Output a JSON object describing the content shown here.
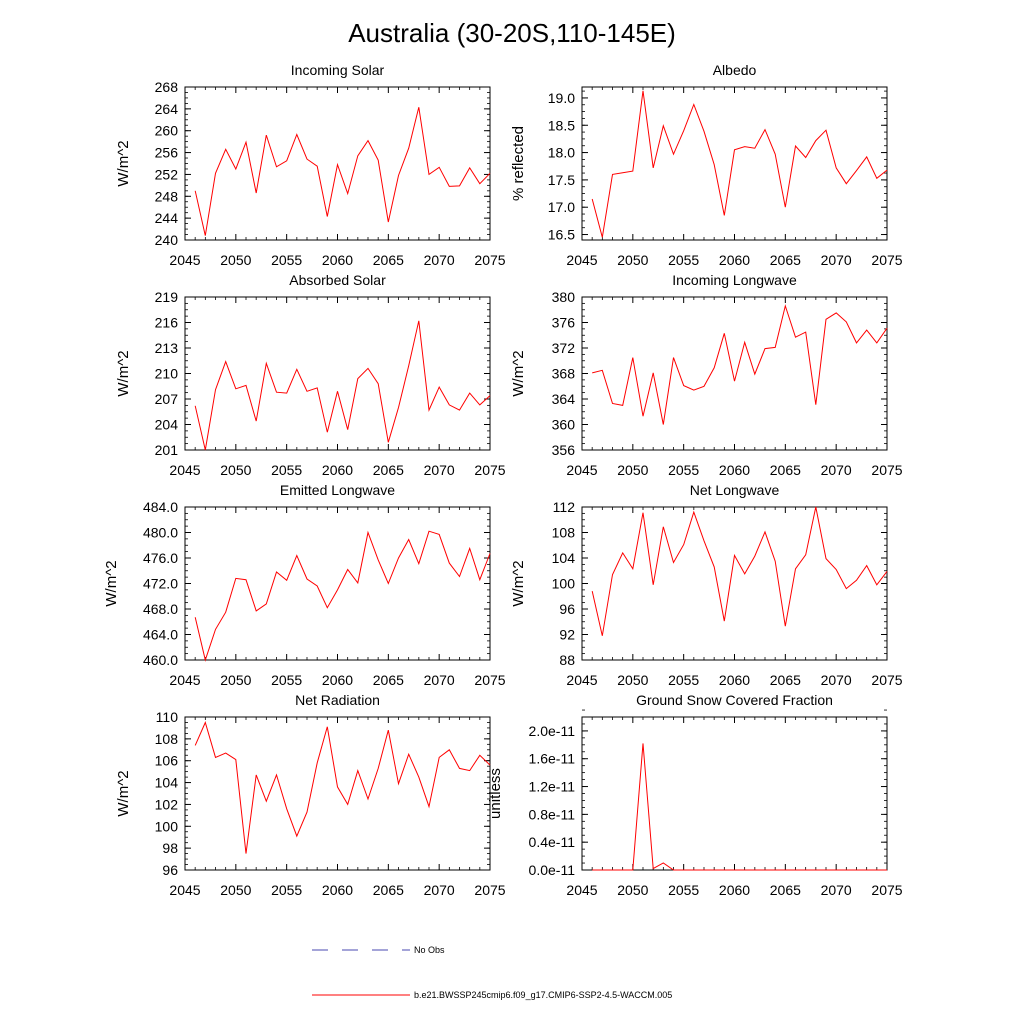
{
  "figure": {
    "title": "Australia (30-20S,110-145E)",
    "legend": [
      {
        "label": "No Obs",
        "color": "#4a4ab0",
        "style": "dashed"
      },
      {
        "label": "b.e21.BWSSP245cmip6.f09_g17.CMIP6-SSP2-4.5-WACCM.005",
        "color": "#ff0000",
        "style": "solid"
      }
    ]
  },
  "chart_data": [
    {
      "type": "line",
      "title": "Incoming Solar",
      "ylabel": "W/m^2",
      "xlim": [
        2045,
        2075
      ],
      "ylim": [
        240,
        268
      ],
      "xticks": [
        "2045",
        "2050",
        "2055",
        "2060",
        "2065",
        "2070",
        "2075"
      ],
      "yticks": [
        "240",
        "244",
        "248",
        "252",
        "256",
        "260",
        "264",
        "268"
      ],
      "x": [
        2046,
        2047,
        2048,
        2049,
        2050,
        2051,
        2052,
        2053,
        2054,
        2055,
        2056,
        2057,
        2058,
        2059,
        2060,
        2061,
        2062,
        2063,
        2064,
        2065,
        2066,
        2067,
        2068,
        2069,
        2070,
        2071,
        2072,
        2073,
        2074,
        2075
      ],
      "series": [
        {
          "color": "#ff0000",
          "values": [
            249.0,
            240.8,
            252.2,
            256.6,
            253.0,
            257.9,
            248.6,
            259.2,
            253.4,
            254.5,
            259.3,
            254.8,
            253.5,
            244.3,
            253.8,
            248.5,
            255.4,
            258.2,
            254.6,
            243.3,
            251.8,
            256.8,
            264.3,
            252.0,
            253.3,
            249.8,
            249.9,
            253.2,
            250.3,
            252.2
          ]
        }
      ]
    },
    {
      "type": "line",
      "title": "Albedo",
      "ylabel": "% reflected",
      "xlim": [
        2045,
        2075
      ],
      "ylim": [
        16.4,
        19.2
      ],
      "xticks": [
        "2045",
        "2050",
        "2055",
        "2060",
        "2065",
        "2070",
        "2075"
      ],
      "yticks": [
        "16.5",
        "17.0",
        "17.5",
        "18.0",
        "18.5",
        "19.0"
      ],
      "x": [
        2046,
        2047,
        2048,
        2049,
        2050,
        2051,
        2052,
        2053,
        2054,
        2055,
        2056,
        2057,
        2058,
        2059,
        2060,
        2061,
        2062,
        2063,
        2064,
        2065,
        2066,
        2067,
        2068,
        2069,
        2070,
        2071,
        2072,
        2073,
        2074,
        2075
      ],
      "series": [
        {
          "color": "#ff0000",
          "values": [
            17.15,
            16.45,
            17.6,
            17.63,
            17.66,
            19.13,
            17.72,
            18.49,
            17.97,
            18.4,
            18.88,
            18.39,
            17.78,
            16.85,
            18.05,
            18.11,
            18.08,
            18.42,
            17.97,
            17.0,
            18.12,
            17.91,
            18.22,
            18.41,
            17.72,
            17.43,
            17.67,
            17.92,
            17.53,
            17.68
          ]
        }
      ]
    },
    {
      "type": "line",
      "title": "Absorbed Solar",
      "ylabel": "W/m^2",
      "xlim": [
        2045,
        2075
      ],
      "ylim": [
        201,
        219
      ],
      "xticks": [
        "2045",
        "2050",
        "2055",
        "2060",
        "2065",
        "2070",
        "2075"
      ],
      "yticks": [
        "201",
        "204",
        "207",
        "210",
        "213",
        "216",
        "219"
      ],
      "x": [
        2046,
        2047,
        2048,
        2049,
        2050,
        2051,
        2052,
        2053,
        2054,
        2055,
        2056,
        2057,
        2058,
        2059,
        2060,
        2061,
        2062,
        2063,
        2064,
        2065,
        2066,
        2067,
        2068,
        2069,
        2070,
        2071,
        2072,
        2073,
        2074,
        2075
      ],
      "series": [
        {
          "color": "#ff0000",
          "values": [
            206.2,
            201.0,
            208.1,
            211.4,
            208.2,
            208.6,
            204.4,
            211.2,
            207.8,
            207.7,
            210.5,
            207.9,
            208.3,
            203.1,
            207.9,
            203.4,
            209.4,
            210.6,
            208.8,
            201.9,
            206.0,
            210.9,
            216.2,
            205.7,
            208.4,
            206.3,
            205.7,
            207.7,
            206.3,
            207.4
          ]
        }
      ]
    },
    {
      "type": "line",
      "title": "Incoming Longwave",
      "ylabel": "W/m^2",
      "xlim": [
        2045,
        2075
      ],
      "ylim": [
        356,
        380
      ],
      "xticks": [
        "2045",
        "2050",
        "2055",
        "2060",
        "2065",
        "2070",
        "2075"
      ],
      "yticks": [
        "356",
        "360",
        "364",
        "368",
        "372",
        "376",
        "380"
      ],
      "x": [
        2046,
        2047,
        2048,
        2049,
        2050,
        2051,
        2052,
        2053,
        2054,
        2055,
        2056,
        2057,
        2058,
        2059,
        2060,
        2061,
        2062,
        2063,
        2064,
        2065,
        2066,
        2067,
        2068,
        2069,
        2070,
        2071,
        2072,
        2073,
        2074,
        2075
      ],
      "series": [
        {
          "color": "#ff0000",
          "values": [
            368.1,
            368.5,
            363.3,
            363.0,
            370.5,
            361.3,
            368.1,
            360.0,
            370.5,
            366.1,
            365.4,
            366.0,
            368.9,
            374.3,
            366.8,
            372.9,
            367.9,
            371.9,
            372.1,
            378.6,
            373.7,
            374.5,
            363.1,
            376.5,
            377.5,
            376.1,
            372.8,
            374.8,
            372.8,
            375.1
          ]
        }
      ]
    },
    {
      "type": "line",
      "title": "Emitted Longwave",
      "ylabel": "W/m^2",
      "xlim": [
        2045,
        2075
      ],
      "ylim": [
        460,
        484
      ],
      "xticks": [
        "2045",
        "2050",
        "2055",
        "2060",
        "2065",
        "2070",
        "2075"
      ],
      "yticks": [
        "460.0",
        "464.0",
        "468.0",
        "472.0",
        "476.0",
        "480.0",
        "484.0"
      ],
      "x": [
        2046,
        2047,
        2048,
        2049,
        2050,
        2051,
        2052,
        2053,
        2054,
        2055,
        2056,
        2057,
        2058,
        2059,
        2060,
        2061,
        2062,
        2063,
        2064,
        2065,
        2066,
        2067,
        2068,
        2069,
        2070,
        2071,
        2072,
        2073,
        2074,
        2075
      ],
      "series": [
        {
          "color": "#ff0000",
          "values": [
            466.7,
            460.0,
            464.8,
            467.5,
            472.8,
            472.6,
            467.7,
            468.8,
            473.8,
            472.5,
            476.4,
            472.7,
            471.6,
            468.2,
            471.0,
            474.2,
            472.1,
            480.0,
            475.7,
            472.0,
            476.0,
            478.9,
            475.1,
            480.2,
            479.7,
            475.2,
            473.1,
            477.5,
            472.6,
            476.7
          ]
        }
      ]
    },
    {
      "type": "line",
      "title": "Net Longwave",
      "ylabel": "W/m^2",
      "xlim": [
        2045,
        2075
      ],
      "ylim": [
        88,
        112
      ],
      "xticks": [
        "2045",
        "2050",
        "2055",
        "2060",
        "2065",
        "2070",
        "2075"
      ],
      "yticks": [
        "88",
        "92",
        "96",
        "100",
        "104",
        "108",
        "112"
      ],
      "x": [
        2046,
        2047,
        2048,
        2049,
        2050,
        2051,
        2052,
        2053,
        2054,
        2055,
        2056,
        2057,
        2058,
        2059,
        2060,
        2061,
        2062,
        2063,
        2064,
        2065,
        2066,
        2067,
        2068,
        2069,
        2070,
        2071,
        2072,
        2073,
        2074,
        2075
      ],
      "series": [
        {
          "color": "#ff0000",
          "values": [
            98.8,
            91.8,
            101.4,
            104.8,
            102.3,
            111.1,
            99.8,
            108.9,
            103.3,
            106.1,
            111.2,
            106.7,
            102.6,
            94.1,
            104.4,
            101.5,
            104.3,
            108.1,
            103.5,
            93.3,
            102.3,
            104.5,
            112.0,
            103.9,
            102.2,
            99.2,
            100.5,
            102.8,
            99.8,
            101.9
          ]
        }
      ]
    },
    {
      "type": "line",
      "title": "Net Radiation",
      "ylabel": "W/m^2",
      "xlim": [
        2045,
        2075
      ],
      "ylim": [
        96,
        110
      ],
      "xticks": [
        "2045",
        "2050",
        "2055",
        "2060",
        "2065",
        "2070",
        "2075"
      ],
      "yticks": [
        "96",
        "98",
        "100",
        "102",
        "104",
        "106",
        "108",
        "110"
      ],
      "x": [
        2046,
        2047,
        2048,
        2049,
        2050,
        2051,
        2052,
        2053,
        2054,
        2055,
        2056,
        2057,
        2058,
        2059,
        2060,
        2061,
        2062,
        2063,
        2064,
        2065,
        2066,
        2067,
        2068,
        2069,
        2070,
        2071,
        2072,
        2073,
        2074,
        2075
      ],
      "series": [
        {
          "color": "#ff0000",
          "values": [
            107.4,
            109.5,
            106.3,
            106.7,
            106.1,
            97.5,
            104.7,
            102.3,
            104.7,
            101.6,
            99.1,
            101.3,
            105.8,
            109.1,
            103.6,
            102.0,
            105.1,
            102.5,
            105.3,
            108.8,
            103.9,
            106.6,
            104.5,
            101.8,
            106.3,
            107.0,
            105.3,
            105.1,
            106.5,
            105.6
          ]
        }
      ]
    },
    {
      "type": "line",
      "title": "Ground Snow Covered Fraction",
      "ylabel": "unitless",
      "xlim": [
        2045,
        2075
      ],
      "ylim": [
        0,
        2.2e-11
      ],
      "xticks": [
        "2045",
        "2050",
        "2055",
        "2060",
        "2065",
        "2070",
        "2075"
      ],
      "yticks": [
        "0.0e-11",
        "0.4e-11",
        "0.8e-11",
        "1.2e-11",
        "1.6e-11",
        "2.0e-11"
      ],
      "x": [
        2046,
        2047,
        2048,
        2049,
        2050,
        2051,
        2052,
        2053,
        2054,
        2055,
        2056,
        2057,
        2058,
        2059,
        2060,
        2061,
        2062,
        2063,
        2064,
        2065,
        2066,
        2067,
        2068,
        2069,
        2070,
        2071,
        2072,
        2073,
        2074,
        2075
      ],
      "series": [
        {
          "color": "#ff0000",
          "values": [
            0,
            0,
            0,
            0,
            0,
            1.82e-11,
            2e-13,
            1e-12,
            0,
            0,
            0,
            0,
            0,
            0,
            0,
            0,
            0,
            0,
            0,
            0,
            0,
            0,
            0,
            0,
            0,
            0,
            0,
            0,
            0,
            0
          ]
        }
      ]
    }
  ]
}
